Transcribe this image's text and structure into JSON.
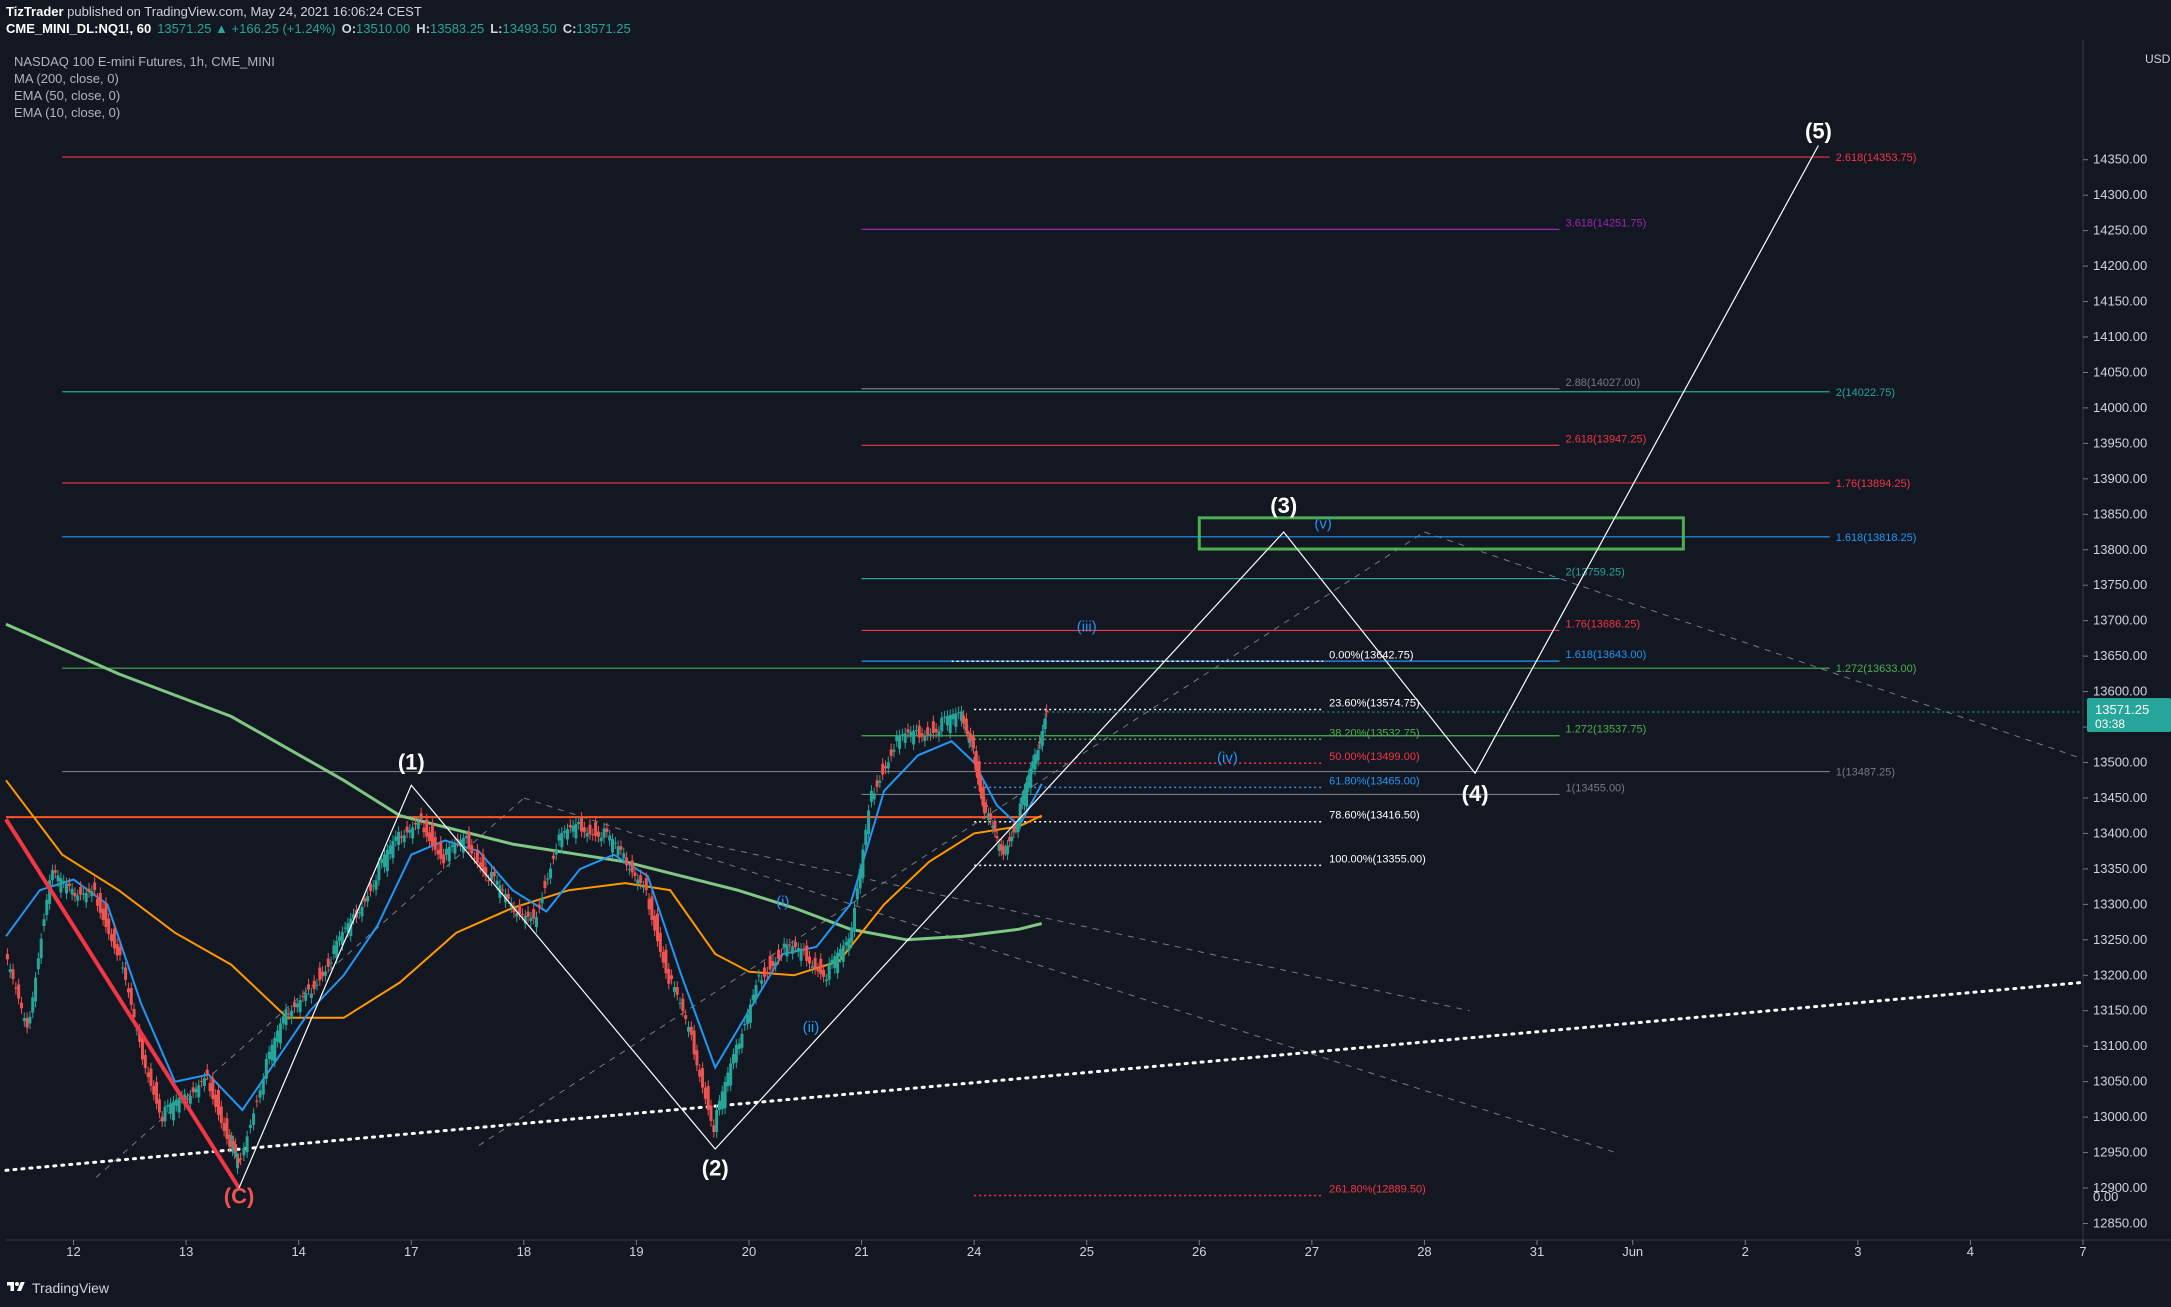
{
  "header": {
    "publisher": "TizTrader",
    "published_text": " published on TradingView.com, May 24, 2021 16:06:24 CEST",
    "symbol": "CME_MINI_DL:NQ1!, 60",
    "change": "13571.25 ▲ +166.25 (+1.24%)",
    "o_label": "O:",
    "o_value": "13510.00",
    "h_label": "H:",
    "h_value": "13583.25",
    "l_label": "L:",
    "l_value": "13493.50",
    "c_label": "C:",
    "c_value": "13571.25"
  },
  "legend": {
    "title": "NASDAQ 100 E-mini Futures, 1h, CME_MINI",
    "indicators": [
      "MA (200, close, 0)",
      "EMA (50, close, 0)",
      "EMA (10, close, 0)"
    ]
  },
  "footer": {
    "brand": "TradingView"
  },
  "currency": "USD",
  "chart_data": {
    "type": "line",
    "title": "NASDAQ 100 E-mini Futures, 1h, CME_MINI",
    "last_price": "13571.25",
    "countdown": "03:38",
    "ylim": [
      12800,
      14400
    ],
    "y_ticks": [
      12850,
      12900,
      12950,
      13000,
      13050,
      13100,
      13150,
      13200,
      13250,
      13300,
      13350,
      13400,
      13450,
      13500,
      13550,
      13600,
      13650,
      13700,
      13750,
      13800,
      13850,
      13900,
      13950,
      14000,
      14050,
      14100,
      14150,
      14200,
      14250,
      14300,
      14350
    ],
    "y_extra_tick": "0.00",
    "x_ticks": [
      {
        "label": "12",
        "x": -3.4
      },
      {
        "label": "13",
        "x": -2.4
      },
      {
        "label": "14",
        "x": -1.4
      },
      {
        "label": "17",
        "x": -0.4
      },
      {
        "label": "18",
        "x": 0.6
      },
      {
        "label": "19",
        "x": 1.6
      },
      {
        "label": "20",
        "x": 2.6
      },
      {
        "label": "21",
        "x": 3.6
      },
      {
        "label": "24",
        "x": 4.6
      },
      {
        "label": "25",
        "x": 5.6
      },
      {
        "label": "26",
        "x": 6.6
      },
      {
        "label": "27",
        "x": 7.6
      },
      {
        "label": "28",
        "x": 8.6
      },
      {
        "label": "31",
        "x": 9.6
      },
      {
        "label": "Jun",
        "x": 10.45
      },
      {
        "label": "2",
        "x": 11.45
      },
      {
        "label": "3",
        "x": 12.45
      },
      {
        "label": "4",
        "x": 13.45
      },
      {
        "label": "7",
        "x": 14.45
      }
    ],
    "xlim": [
      -4.0,
      14.45
    ],
    "wave_labels": [
      {
        "text": "(C)",
        "x": -1.93,
        "y": 12878,
        "color": "#ef5350"
      },
      {
        "text": "(1)",
        "x": -0.4,
        "y": 13490,
        "color": "#ffffff"
      },
      {
        "text": "(2)",
        "x": 2.3,
        "y": 12918,
        "color": "#ffffff"
      },
      {
        "text": "(3)",
        "x": 7.35,
        "y": 13852,
        "color": "#ffffff"
      },
      {
        "text": "(4)",
        "x": 9.05,
        "y": 13446,
        "color": "#ffffff"
      },
      {
        "text": "(5)",
        "x": 12.1,
        "y": 14380,
        "color": "#ffffff"
      },
      {
        "text": "(i)",
        "x": 2.9,
        "y": 13297,
        "color": "#2196f3"
      },
      {
        "text": "(ii)",
        "x": 3.15,
        "y": 13120,
        "color": "#2196f3"
      },
      {
        "text": "(iii)",
        "x": 5.6,
        "y": 13685,
        "color": "#2196f3"
      },
      {
        "text": "(iv)",
        "x": 6.85,
        "y": 13500,
        "color": "#2196f3"
      },
      {
        "text": "(v)",
        "x": 7.7,
        "y": 13830,
        "color": "#2196f3"
      }
    ],
    "wave_path": [
      [
        -1.93,
        12900
      ],
      [
        -0.4,
        13468
      ],
      [
        2.3,
        12955
      ],
      [
        7.35,
        13825
      ],
      [
        9.05,
        13485
      ],
      [
        12.1,
        14370
      ]
    ],
    "wave_path_sub": [
      [
        2.3,
        12955
      ],
      [
        5.0,
        13400
      ],
      [
        5.7,
        13490
      ]
    ],
    "fib_levels": [
      {
        "label": "0.00%(13642.75)",
        "y": 13642.75,
        "color": "#ffffff",
        "x1": 4.4,
        "x2": 7.7
      },
      {
        "label": "23.60%(13574.75)",
        "y": 13574.75,
        "color": "#ffffff",
        "x1": 4.6,
        "x2": 7.7
      },
      {
        "label": "38.20%(13532.75)",
        "y": 13532.75,
        "color": "#4caf50",
        "x1": 4.6,
        "x2": 7.7
      },
      {
        "label": "50.00%(13499.00)",
        "y": 13499.0,
        "color": "#f23645",
        "x1": 4.6,
        "x2": 7.7
      },
      {
        "label": "61.80%(13465.00)",
        "y": 13465.0,
        "color": "#2196f3",
        "x1": 4.6,
        "x2": 7.7
      },
      {
        "label": "78.60%(13416.50)",
        "y": 13416.5,
        "color": "#ffffff",
        "x1": 4.6,
        "x2": 7.7
      },
      {
        "label": "100.00%(13355.00)",
        "y": 13355.0,
        "color": "#ffffff",
        "x1": 4.6,
        "x2": 7.7
      },
      {
        "label": "261.80%(12889.50)",
        "y": 12889.5,
        "color": "#f23645",
        "x1": 4.6,
        "x2": 7.7
      }
    ],
    "ext_levels_mid": [
      {
        "label": "3.618(14251.75)",
        "y": 14251.75,
        "color": "#9c27b0",
        "x1": 3.6,
        "x2": 9.8
      },
      {
        "label": "2.88(14027.00)",
        "y": 14027.0,
        "color": "#787b86",
        "x1": 3.6,
        "x2": 9.8
      },
      {
        "label": "2.618(13947.25)",
        "y": 13947.25,
        "color": "#f23645",
        "x1": 3.6,
        "x2": 9.8
      },
      {
        "label": "2(13759.25)",
        "y": 13759.25,
        "color": "#26a69a",
        "x1": 3.6,
        "x2": 9.8
      },
      {
        "label": "1.76(13686.25)",
        "y": 13686.25,
        "color": "#f23645",
        "x1": 3.6,
        "x2": 9.8
      },
      {
        "label": "1.618(13643.00)",
        "y": 13643.0,
        "color": "#2196f3",
        "x1": 3.6,
        "x2": 9.8
      },
      {
        "label": "1.272(13537.75)",
        "y": 13537.75,
        "color": "#4caf50",
        "x1": 3.6,
        "x2": 9.8
      },
      {
        "label": "1(13455.00)",
        "y": 13455.0,
        "color": "#787b86",
        "x1": 3.6,
        "x2": 9.8
      }
    ],
    "ext_levels_right": [
      {
        "label": "2.618(14353.75)",
        "y": 14353.75,
        "color": "#f23645",
        "x1": -3.5,
        "x2": 12.2
      },
      {
        "label": "2(14022.75)",
        "y": 14022.75,
        "color": "#26a69a",
        "x1": -3.5,
        "x2": 12.2
      },
      {
        "label": "1.76(13894.25)",
        "y": 13894.25,
        "color": "#f23645",
        "x1": -3.5,
        "x2": 12.2
      },
      {
        "label": "1.618(13818.25)",
        "y": 13818.25,
        "color": "#2196f3",
        "x1": -3.5,
        "x2": 12.2
      },
      {
        "label": "1.272(13633.00)",
        "y": 13633.0,
        "color": "#4caf50",
        "x1": -3.5,
        "x2": 12.2
      },
      {
        "label": "1(13487.25)",
        "y": 13487.25,
        "color": "#787b86",
        "x1": -3.5,
        "x2": 12.2
      }
    ],
    "target_box": {
      "x1": 6.6,
      "x2": 10.9,
      "y1": 13801,
      "y2": 13845,
      "color": "#4caf50"
    },
    "horizontal_resistance": {
      "y": 13423,
      "color": "#ff5722"
    },
    "ma200": {
      "color": "#81c784",
      "points": [
        [
          -4.0,
          13695
        ],
        [
          -3.0,
          13625
        ],
        [
          -2.0,
          13565
        ],
        [
          -1.0,
          13475
        ],
        [
          -0.5,
          13425
        ],
        [
          0.5,
          13385
        ],
        [
          1.5,
          13360
        ],
        [
          2.5,
          13320
        ],
        [
          3.0,
          13295
        ],
        [
          3.5,
          13265
        ],
        [
          4.0,
          13250
        ],
        [
          4.5,
          13255
        ],
        [
          5.0,
          13265
        ],
        [
          5.2,
          13273
        ]
      ]
    },
    "ema50": {
      "color": "#ff9800",
      "points": [
        [
          -4.0,
          13475
        ],
        [
          -3.5,
          13370
        ],
        [
          -3.0,
          13320
        ],
        [
          -2.5,
          13260
        ],
        [
          -2.0,
          13215
        ],
        [
          -1.5,
          13140
        ],
        [
          -1.0,
          13140
        ],
        [
          -0.5,
          13190
        ],
        [
          0.0,
          13260
        ],
        [
          0.5,
          13295
        ],
        [
          1.0,
          13320
        ],
        [
          1.5,
          13330
        ],
        [
          1.9,
          13320
        ],
        [
          2.3,
          13230
        ],
        [
          2.6,
          13205
        ],
        [
          3.0,
          13200
        ],
        [
          3.4,
          13220
        ],
        [
          3.8,
          13300
        ],
        [
          4.2,
          13360
        ],
        [
          4.6,
          13400
        ],
        [
          5.0,
          13410
        ],
        [
          5.2,
          13425
        ]
      ]
    },
    "ema10": {
      "color": "#2196f3",
      "points": [
        [
          -4.0,
          13255
        ],
        [
          -3.7,
          13320
        ],
        [
          -3.4,
          13335
        ],
        [
          -3.1,
          13300
        ],
        [
          -2.8,
          13160
        ],
        [
          -2.5,
          13050
        ],
        [
          -2.2,
          13060
        ],
        [
          -1.9,
          13010
        ],
        [
          -1.6,
          13080
        ],
        [
          -1.3,
          13150
        ],
        [
          -1.0,
          13200
        ],
        [
          -0.7,
          13270
        ],
        [
          -0.4,
          13370
        ],
        [
          -0.1,
          13390
        ],
        [
          0.2,
          13375
        ],
        [
          0.5,
          13320
        ],
        [
          0.8,
          13290
        ],
        [
          1.1,
          13350
        ],
        [
          1.4,
          13370
        ],
        [
          1.7,
          13340
        ],
        [
          2.0,
          13200
        ],
        [
          2.3,
          13070
        ],
        [
          2.6,
          13150
        ],
        [
          2.9,
          13230
        ],
        [
          3.2,
          13240
        ],
        [
          3.5,
          13300
        ],
        [
          3.8,
          13460
        ],
        [
          4.1,
          13510
        ],
        [
          4.4,
          13530
        ],
        [
          4.6,
          13500
        ],
        [
          4.8,
          13440
        ],
        [
          5.0,
          13410
        ],
        [
          5.2,
          13470
        ]
      ]
    },
    "price": {
      "color_up": "#26a69a",
      "color_down": "#ef5350",
      "points": [
        [
          -4.0,
          13230
        ],
        [
          -3.8,
          13120
        ],
        [
          -3.6,
          13340
        ],
        [
          -3.4,
          13310
        ],
        [
          -3.2,
          13320
        ],
        [
          -3.0,
          13240
        ],
        [
          -2.8,
          13100
        ],
        [
          -2.6,
          13000
        ],
        [
          -2.4,
          13020
        ],
        [
          -2.2,
          13060
        ],
        [
          -2.0,
          12970
        ],
        [
          -1.93,
          12930
        ],
        [
          -1.7,
          13060
        ],
        [
          -1.5,
          13140
        ],
        [
          -1.3,
          13180
        ],
        [
          -1.1,
          13230
        ],
        [
          -0.9,
          13280
        ],
        [
          -0.7,
          13340
        ],
        [
          -0.5,
          13390
        ],
        [
          -0.3,
          13420
        ],
        [
          -0.1,
          13370
        ],
        [
          0.1,
          13390
        ],
        [
          0.3,
          13340
        ],
        [
          0.5,
          13290
        ],
        [
          0.7,
          13280
        ],
        [
          0.9,
          13390
        ],
        [
          1.1,
          13410
        ],
        [
          1.3,
          13400
        ],
        [
          1.5,
          13360
        ],
        [
          1.7,
          13320
        ],
        [
          1.9,
          13200
        ],
        [
          2.1,
          13110
        ],
        [
          2.3,
          12985
        ],
        [
          2.5,
          13090
        ],
        [
          2.7,
          13200
        ],
        [
          2.9,
          13240
        ],
        [
          3.1,
          13230
        ],
        [
          3.3,
          13200
        ],
        [
          3.5,
          13240
        ],
        [
          3.7,
          13460
        ],
        [
          3.9,
          13530
        ],
        [
          4.1,
          13540
        ],
        [
          4.3,
          13550
        ],
        [
          4.5,
          13560
        ],
        [
          4.6,
          13520
        ],
        [
          4.7,
          13440
        ],
        [
          4.85,
          13370
        ],
        [
          5.0,
          13420
        ],
        [
          5.15,
          13500
        ],
        [
          5.25,
          13571
        ]
      ]
    }
  }
}
